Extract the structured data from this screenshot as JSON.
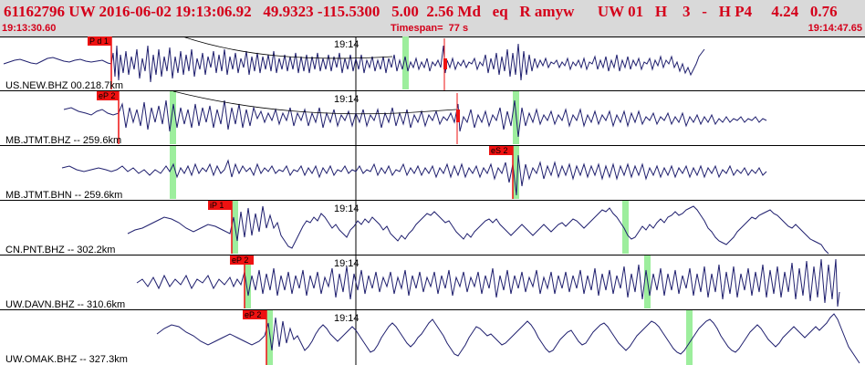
{
  "header": {
    "title": "61162796 UW 2016-06-02 19:13:06.92   49.9323 -115.5300   5.00  2.56 Md   eq   R amyw      UW 01   H    3   -   H P4     4.24   0.76",
    "start_time": "19:13:30.60",
    "timespan": "Timespan=  77 s",
    "end_time": "19:14:47.65"
  },
  "colors": {
    "header_bg": "#d9d9d9",
    "header_text": "#d4001a",
    "trace": "#1f1f6e",
    "pick": "#ee1111",
    "window_marker": "#9dee9d",
    "divider": "#000000"
  },
  "time_tick_label": "19:14",
  "traces": [
    {
      "label": "US.NEW.BHZ 00.218.7km",
      "pick_label": "P d 1"
    },
    {
      "label": "MB.JTMT.BHZ -- 259.6km",
      "pick_label": "eP 2"
    },
    {
      "label": "MB.JTMT.BHN -- 259.6km",
      "pick_label": "eS 2"
    },
    {
      "label": "CN.PNT.BHZ -- 302.2km",
      "pick_label": "iP 1"
    },
    {
      "label": "UW.DAVN.BHZ -- 310.6km",
      "pick_label": "eP 2"
    },
    {
      "label": "UW.OMAK.BHZ -- 327.3km",
      "pick_label": "eP 2"
    }
  ]
}
